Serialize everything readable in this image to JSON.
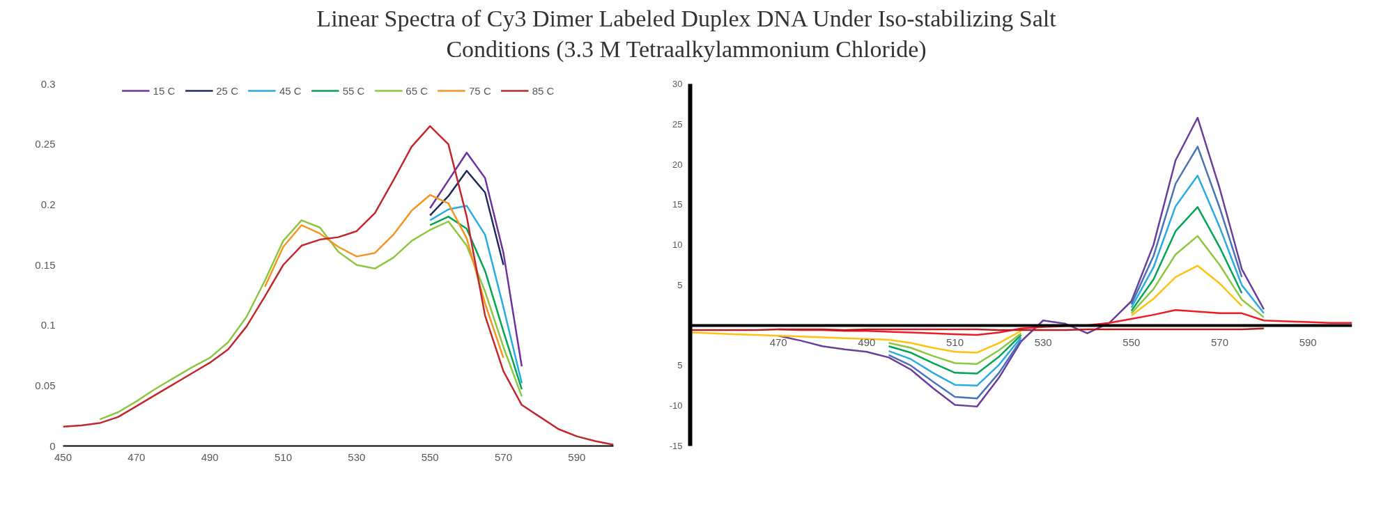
{
  "chart_data": [
    {
      "type": "line",
      "title": "Linear Spectra of Cy3 Dimer Labeled Duplex DNA Under Iso-stabilizing Salt\nConditions (3.3 M Tetraalkylammonium Chloride)",
      "x": [
        450,
        455,
        460,
        465,
        470,
        475,
        480,
        485,
        490,
        495,
        500,
        505,
        510,
        515,
        520,
        525,
        530,
        535,
        540,
        545,
        550,
        555,
        560,
        565,
        570,
        575,
        580,
        585,
        590,
        595,
        600
      ],
      "xlim": [
        450,
        600
      ],
      "xticks": [
        450,
        470,
        490,
        510,
        530,
        550,
        570,
        590
      ],
      "ylim": [
        0,
        0.3
      ],
      "yticks": [
        0,
        0.05,
        0.1,
        0.15,
        0.2,
        0.25,
        0.3
      ],
      "legend": "top",
      "grid": false,
      "series": [
        {
          "name": "15 C",
          "color": "#7030a0",
          "values": [
            null,
            null,
            null,
            null,
            null,
            null,
            null,
            null,
            null,
            null,
            null,
            null,
            null,
            null,
            null,
            null,
            null,
            null,
            null,
            null,
            0.197,
            0.22,
            0.243,
            0.222,
            0.16,
            0.066,
            null,
            null,
            null,
            null,
            null
          ]
        },
        {
          "name": "25 C",
          "color": "#1f2a5c",
          "values": [
            null,
            null,
            null,
            null,
            null,
            null,
            null,
            null,
            null,
            null,
            null,
            null,
            null,
            null,
            null,
            null,
            null,
            null,
            null,
            null,
            0.191,
            0.207,
            0.228,
            0.21,
            0.15,
            null,
            null,
            null,
            null,
            null,
            null
          ]
        },
        {
          "name": "45 C",
          "color": "#29abe2",
          "values": [
            null,
            null,
            null,
            null,
            null,
            null,
            null,
            null,
            null,
            null,
            null,
            null,
            null,
            null,
            null,
            null,
            null,
            null,
            null,
            null,
            0.187,
            0.196,
            0.199,
            0.175,
            0.115,
            0.052,
            null,
            null,
            null,
            null,
            null
          ]
        },
        {
          "name": "55 C",
          "color": "#00a651",
          "values": [
            null,
            null,
            null,
            null,
            null,
            null,
            null,
            null,
            null,
            null,
            null,
            null,
            null,
            null,
            null,
            null,
            null,
            null,
            null,
            null,
            0.183,
            0.19,
            0.18,
            0.145,
            0.095,
            0.047,
            null,
            null,
            null,
            null,
            null
          ]
        },
        {
          "name": "65 C",
          "color": "#8dc63f",
          "values": [
            null,
            null,
            0.022,
            0.028,
            0.037,
            0.047,
            0.056,
            0.065,
            0.073,
            0.086,
            0.107,
            0.137,
            0.17,
            0.187,
            0.181,
            0.161,
            0.15,
            0.147,
            0.156,
            0.17,
            0.179,
            0.186,
            0.166,
            0.128,
            0.082,
            0.041,
            null,
            null,
            null,
            null,
            null
          ]
        },
        {
          "name": "75 C",
          "color": "#f7941d",
          "values": [
            null,
            null,
            null,
            null,
            null,
            null,
            null,
            null,
            null,
            null,
            null,
            0.132,
            0.165,
            0.183,
            0.176,
            0.165,
            0.157,
            0.16,
            0.175,
            0.195,
            0.208,
            0.201,
            0.172,
            0.118,
            0.073,
            null,
            null,
            null,
            null,
            null,
            null
          ]
        },
        {
          "name": "85 C",
          "color": "#c1272d",
          "values": [
            0.016,
            0.017,
            0.019,
            0.024,
            0.033,
            0.042,
            0.051,
            0.06,
            0.069,
            0.08,
            0.099,
            0.124,
            0.15,
            0.166,
            0.171,
            0.173,
            0.178,
            0.193,
            0.22,
            0.248,
            0.265,
            0.25,
            0.19,
            0.108,
            0.062,
            0.034,
            0.024,
            0.014,
            0.008,
            0.004,
            0.001
          ]
        }
      ]
    },
    {
      "type": "line",
      "x": [
        450,
        455,
        460,
        465,
        470,
        475,
        480,
        485,
        490,
        495,
        500,
        505,
        510,
        515,
        520,
        525,
        530,
        535,
        540,
        545,
        550,
        555,
        560,
        565,
        570,
        575,
        580,
        585,
        590,
        595,
        600
      ],
      "xlim": [
        450,
        600
      ],
      "xticks": [
        470,
        490,
        510,
        530,
        550,
        570,
        590
      ],
      "ylim": [
        -15,
        30
      ],
      "yticks": [
        -15,
        -10,
        {
          "value": -5,
          "label": "5"
        },
        {
          "value": 0,
          "label": null
        },
        5,
        10,
        15,
        20,
        25,
        30
      ],
      "legend": false,
      "grid": false,
      "series": [
        {
          "color": "#6a3d9a",
          "values": [
            null,
            null,
            null,
            null,
            -1.3,
            -1.9,
            -2.6,
            -3.0,
            -3.3,
            -4.0,
            -5.5,
            -7.8,
            -9.9,
            -10.1,
            -6.5,
            -2.0,
            0.6,
            0.2,
            -1.0,
            0.3,
            3.0,
            10.0,
            20.5,
            25.8,
            17.0,
            7.0,
            2.0,
            null,
            null,
            null,
            null
          ]
        },
        {
          "color": "#4a72b8",
          "values": [
            null,
            null,
            null,
            null,
            null,
            null,
            null,
            null,
            null,
            -3.7,
            -5.0,
            -7.0,
            -8.9,
            -9.1,
            -5.9,
            -1.8,
            null,
            null,
            null,
            null,
            2.6,
            8.6,
            17.6,
            22.2,
            14.6,
            6.0,
            null,
            null,
            null,
            null,
            null
          ]
        },
        {
          "color": "#29abe2",
          "values": [
            null,
            null,
            null,
            null,
            null,
            null,
            null,
            null,
            null,
            -3.2,
            -4.2,
            -5.9,
            -7.4,
            -7.5,
            -4.9,
            -1.5,
            null,
            null,
            null,
            null,
            2.2,
            7.2,
            14.8,
            18.6,
            12.2,
            5.0,
            1.5,
            null,
            null,
            null,
            null
          ]
        },
        {
          "color": "#00a651",
          "values": [
            null,
            null,
            null,
            null,
            null,
            null,
            null,
            null,
            null,
            -2.6,
            -3.4,
            -4.7,
            -5.9,
            -6.0,
            -3.9,
            -1.2,
            null,
            null,
            null,
            null,
            1.8,
            5.7,
            11.7,
            14.7,
            9.7,
            4.0,
            null,
            null,
            null,
            null,
            null
          ]
        },
        {
          "color": "#8dc63f",
          "values": [
            null,
            null,
            null,
            null,
            null,
            null,
            null,
            null,
            null,
            -2.2,
            -2.8,
            -3.8,
            -4.7,
            -4.8,
            -3.1,
            -1.0,
            null,
            null,
            null,
            null,
            1.5,
            4.5,
            8.8,
            11.1,
            7.5,
            3.2,
            1.0,
            null,
            null,
            null,
            null
          ]
        },
        {
          "color": "#ffc20e",
          "values": [
            -0.9,
            -1.0,
            -1.1,
            -1.2,
            -1.3,
            -1.4,
            -1.5,
            -1.6,
            -1.7,
            -1.8,
            -2.2,
            -2.8,
            -3.3,
            -3.4,
            -2.2,
            -0.7,
            null,
            null,
            null,
            null,
            1.2,
            3.3,
            6.0,
            7.4,
            5.2,
            2.4,
            null,
            null,
            null,
            null,
            null
          ]
        },
        {
          "color": "#ed1c24",
          "values": [
            null,
            null,
            null,
            null,
            -0.5,
            -0.6,
            -0.6,
            -0.7,
            -0.7,
            -0.8,
            -0.9,
            -1.0,
            -1.1,
            -1.2,
            -0.9,
            -0.4,
            -0.2,
            -0.1,
            0.0,
            0.3,
            0.8,
            1.3,
            1.9,
            1.7,
            1.5,
            1.5,
            0.6,
            0.5,
            0.4,
            0.3,
            0.3
          ]
        },
        {
          "color": "#b01c22",
          "values": [
            -0.6,
            -0.6,
            -0.6,
            -0.6,
            -0.5,
            -0.5,
            -0.5,
            -0.6,
            -0.5,
            -0.5,
            -0.5,
            -0.5,
            -0.5,
            -0.5,
            -0.6,
            -0.6,
            -0.6,
            -0.6,
            -0.5,
            -0.5,
            -0.5,
            -0.5,
            -0.5,
            -0.5,
            -0.5,
            -0.5,
            -0.4,
            null,
            null,
            null,
            null
          ]
        }
      ]
    }
  ]
}
